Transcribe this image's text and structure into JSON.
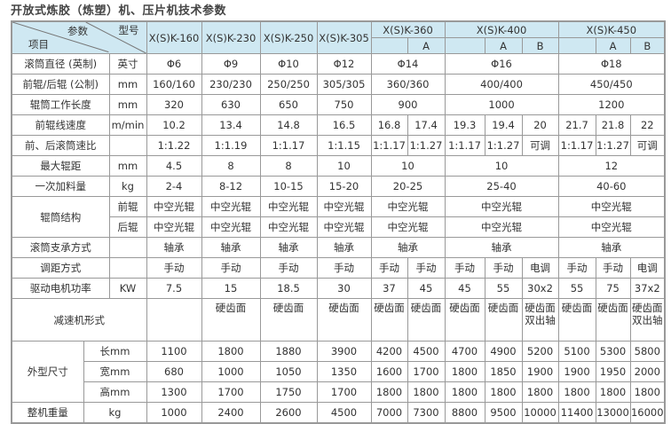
{
  "title": "开放式炼胶（炼塑）机、压片机技术参数",
  "header": {
    "corner_param": "参数",
    "corner_model": "型号",
    "corner_item": "项目",
    "header_color": "#cfe8f2",
    "models": [
      {
        "name": "X(S)K-160",
        "variants": []
      },
      {
        "name": "X(S)K-230",
        "variants": []
      },
      {
        "name": "X(S)K-250",
        "variants": []
      },
      {
        "name": "X(S)K-305",
        "variants": []
      },
      {
        "name": "X(S)K-360",
        "variants": [
          "",
          "A"
        ]
      },
      {
        "name": "X(S)K-400",
        "variants": [
          "",
          "A",
          "B"
        ]
      },
      {
        "name": "X(S)K-450",
        "variants": [
          "",
          "A",
          "B"
        ]
      }
    ]
  },
  "rows": [
    {
      "label": "滚筒直径 (英制)",
      "unit": "英寸",
      "values": [
        "Φ6",
        "Φ9",
        "Φ10",
        "Φ12",
        "Φ14",
        "Φ16",
        "Φ18"
      ]
    },
    {
      "label": "前辊/后辊 (公制)",
      "unit": "mm",
      "values": [
        "160/160",
        "230/230",
        "250/250",
        "305/305",
        "360/360",
        "400/400",
        "450/450"
      ]
    },
    {
      "label": "辊筒工作长度",
      "unit": "mm",
      "values": [
        "320",
        "630",
        "650",
        "750",
        "900",
        "1000",
        "1200"
      ]
    },
    {
      "label": "前辊线速度",
      "unit": "m/min",
      "values": [
        "10.2",
        "13.4",
        "14.8",
        "16.5",
        "16.8",
        "17.4",
        "19.3",
        "19.4",
        "20",
        "21.7",
        "21.8",
        "22"
      ]
    },
    {
      "label": "前、后滚筒速比",
      "unit": "",
      "values": [
        "1:1.22",
        "1:1.19",
        "1:1.17",
        "1:1.15",
        "1:1.17",
        "1:1.27",
        "1:1.17",
        "1:1.27",
        "可调",
        "1:1.17",
        "1:1.27",
        "可调"
      ]
    },
    {
      "label": "最大辊距",
      "unit": "mm",
      "values": [
        "4.5",
        "8",
        "8",
        "10",
        "10",
        "10",
        "12"
      ]
    },
    {
      "label": "一次加料量",
      "unit": "kg",
      "values": [
        "2-4",
        "8-12",
        "10-15",
        "15-20",
        "20-25",
        "25-40",
        "40-60"
      ]
    },
    {
      "label": "辊筒结构",
      "unit": "前辊",
      "values": [
        "中空光辊",
        "中空光辊",
        "中空光辊",
        "中空光辊",
        "中空光辊",
        "中空光辊",
        "中空光辊"
      ]
    },
    {
      "unit": "后辊",
      "values": [
        "中空光辊",
        "中空光辊",
        "中空光辊",
        "中空光辊",
        "中空光辊",
        "中空光辊",
        "中空光辊"
      ]
    },
    {
      "label": "滚筒支承方式",
      "unit": "",
      "values": [
        "轴承",
        "轴承",
        "轴承",
        "轴承",
        "轴承",
        "轴承",
        "轴承"
      ]
    },
    {
      "label": "调距方式",
      "unit": "",
      "values": [
        "手动",
        "手动",
        "手动",
        "手动",
        "手动",
        "手动",
        "手动",
        "手动",
        "电调",
        "手动",
        "手动",
        "电调"
      ]
    },
    {
      "label": "驱动电机功率",
      "unit": "KW",
      "values": [
        "7.5",
        "15",
        "18.5",
        "30",
        "37",
        "45",
        "45",
        "55",
        "30x2",
        "55",
        "75",
        "37x2"
      ]
    },
    {
      "label": "减速机形式",
      "values": [
        "",
        "硬齿面",
        "硬齿面",
        "硬齿面",
        "硬齿面",
        "硬齿面",
        "硬齿面",
        "硬齿面",
        "硬齿面\n双出轴",
        "硬齿面",
        "硬齿面",
        "硬齿面\n双出轴"
      ]
    },
    {
      "label": "外型尺寸",
      "unit": "长mm",
      "values": [
        "1100",
        "1800",
        "1880",
        "3900",
        "4200",
        "4500",
        "4700",
        "4900",
        "5200",
        "5100",
        "5300",
        "5800"
      ]
    },
    {
      "unit": "宽mm",
      "values": [
        "680",
        "1000",
        "1050",
        "1350",
        "1600",
        "1700",
        "1800",
        "1850",
        "1900",
        "1900",
        "1950",
        "2000"
      ]
    },
    {
      "unit": "高mm",
      "values": [
        "1300",
        "1700",
        "1750",
        "1700",
        "1800",
        "1800",
        "1800",
        "1800",
        "1800",
        "1800",
        "1800",
        "1800"
      ]
    },
    {
      "label": "整机重量",
      "unit": "kg",
      "values": [
        "1000",
        "2400",
        "2600",
        "4500",
        "7000",
        "7300",
        "8800",
        "9500",
        "10000",
        "11400",
        "13000",
        "16000"
      ]
    }
  ]
}
